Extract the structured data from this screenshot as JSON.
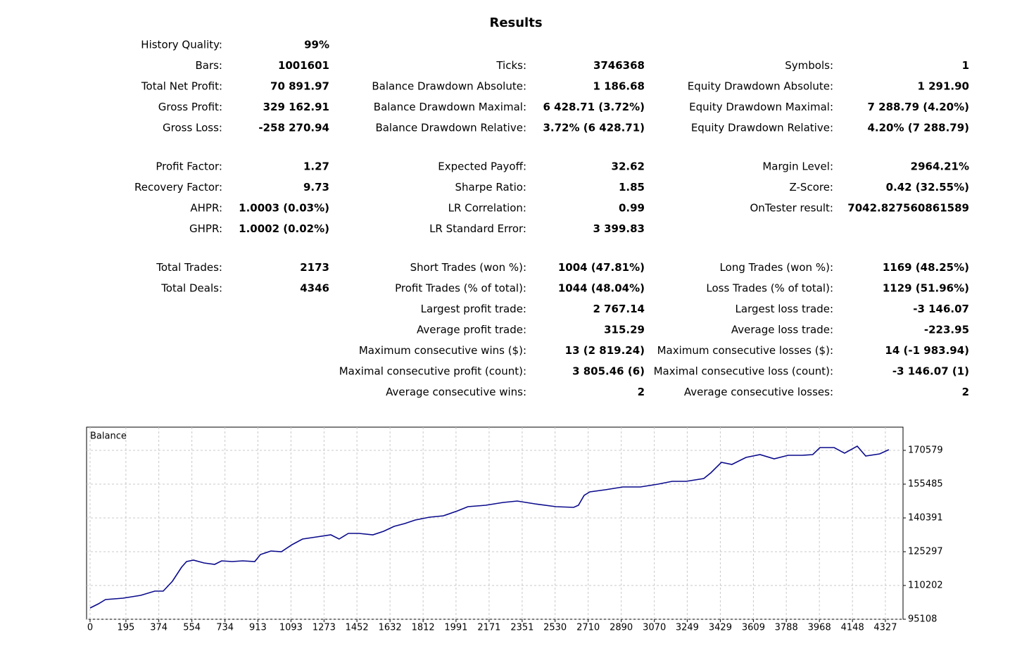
{
  "title": "Results",
  "groups": [
    {
      "rows": [
        [
          {
            "label": "History Quality:",
            "value": "99%"
          },
          null,
          null
        ],
        [
          {
            "label": "Bars:",
            "value": "1001601"
          },
          {
            "label": "Ticks:",
            "value": "3746368"
          },
          {
            "label": "Symbols:",
            "value": "1"
          }
        ],
        [
          {
            "label": "Total Net Profit:",
            "value": "70 891.97"
          },
          {
            "label": "Balance Drawdown Absolute:",
            "value": "1 186.68"
          },
          {
            "label": "Equity Drawdown Absolute:",
            "value": "1 291.90"
          }
        ],
        [
          {
            "label": "Gross Profit:",
            "value": "329 162.91"
          },
          {
            "label": "Balance Drawdown Maximal:",
            "value": "6 428.71 (3.72%)"
          },
          {
            "label": "Equity Drawdown Maximal:",
            "value": "7 288.79 (4.20%)"
          }
        ],
        [
          {
            "label": "Gross Loss:",
            "value": "-258 270.94"
          },
          {
            "label": "Balance Drawdown Relative:",
            "value": "3.72% (6 428.71)"
          },
          {
            "label": "Equity Drawdown Relative:",
            "value": "4.20% (7 288.79)"
          }
        ]
      ]
    },
    {
      "rows": [
        [
          {
            "label": "Profit Factor:",
            "value": "1.27"
          },
          {
            "label": "Expected Payoff:",
            "value": "32.62"
          },
          {
            "label": "Margin Level:",
            "value": "2964.21%"
          }
        ],
        [
          {
            "label": "Recovery Factor:",
            "value": "9.73"
          },
          {
            "label": "Sharpe Ratio:",
            "value": "1.85"
          },
          {
            "label": "Z-Score:",
            "value": "0.42 (32.55%)"
          }
        ],
        [
          {
            "label": "AHPR:",
            "value": "1.0003 (0.03%)"
          },
          {
            "label": "LR Correlation:",
            "value": "0.99"
          },
          {
            "label": "OnTester result:",
            "value": "7042.827560861589"
          }
        ],
        [
          {
            "label": "GHPR:",
            "value": "1.0002 (0.02%)"
          },
          {
            "label": "LR Standard Error:",
            "value": "3 399.83"
          },
          null
        ]
      ]
    },
    {
      "rows": [
        [
          {
            "label": "Total Trades:",
            "value": "2173"
          },
          {
            "label": "Short Trades (won %):",
            "value": "1004 (47.81%)"
          },
          {
            "label": "Long Trades (won %):",
            "value": "1169 (48.25%)"
          }
        ],
        [
          {
            "label": "Total Deals:",
            "value": "4346"
          },
          {
            "label": "Profit Trades (% of total):",
            "value": "1044 (48.04%)"
          },
          {
            "label": "Loss Trades (% of total):",
            "value": "1129 (51.96%)"
          }
        ],
        [
          null,
          {
            "label": "Largest profit trade:",
            "value": "2 767.14"
          },
          {
            "label": "Largest loss trade:",
            "value": "-3 146.07"
          }
        ],
        [
          null,
          {
            "label": "Average profit trade:",
            "value": "315.29"
          },
          {
            "label": "Average loss trade:",
            "value": "-223.95"
          }
        ],
        [
          null,
          {
            "label": "Maximum consecutive wins ($):",
            "value": "13 (2 819.24)"
          },
          {
            "label": "Maximum consecutive losses ($):",
            "value": "14 (-1 983.94)"
          }
        ],
        [
          null,
          {
            "label": "Maximal consecutive profit (count):",
            "value": "3 805.46 (6)"
          },
          {
            "label": "Maximal consecutive loss (count):",
            "value": "-3 146.07 (1)"
          }
        ],
        [
          null,
          {
            "label": "Average consecutive wins:",
            "value": "2"
          },
          {
            "label": "Average consecutive losses:",
            "value": "2"
          }
        ]
      ]
    }
  ],
  "chart_data": {
    "type": "line",
    "x": [
      0,
      46,
      84,
      180,
      276,
      352,
      398,
      448,
      498,
      525,
      563,
      620,
      678,
      716,
      773,
      831,
      896,
      927,
      984,
      1041,
      1099,
      1156,
      1233,
      1310,
      1355,
      1405,
      1463,
      1539,
      1597,
      1654,
      1712,
      1769,
      1846,
      1922,
      1999,
      2056,
      2152,
      2248,
      2324,
      2420,
      2535,
      2631,
      2657,
      2688,
      2719,
      2803,
      2899,
      2994,
      3090,
      3167,
      3243,
      3339,
      3377,
      3435,
      3492,
      3569,
      3645,
      3722,
      3798,
      3875,
      3932,
      3971,
      4048,
      4105,
      4174,
      4220,
      4296,
      4346
    ],
    "series": [
      {
        "name": "Balance",
        "color": "#0a0a8c",
        "values": [
          100139,
          102026,
          103913,
          104542,
          105800,
          107686,
          107686,
          112089,
          118378,
          120894,
          121523,
          120265,
          119636,
          121208,
          120894,
          121208,
          120894,
          124038,
          125610,
          125296,
          128441,
          130956,
          131900,
          132843,
          130956,
          133472,
          133472,
          132843,
          134415,
          136617,
          137875,
          139447,
          140705,
          141334,
          143535,
          145422,
          146051,
          147307,
          147937,
          146680,
          145422,
          145108,
          146051,
          150453,
          152025,
          152969,
          154227,
          154227,
          155485,
          156743,
          156743,
          158000,
          160516,
          165233,
          164290,
          167434,
          168692,
          166805,
          168378,
          168378,
          168692,
          171836,
          171836,
          169321,
          172465,
          168063,
          169006,
          170892
        ]
      }
    ],
    "xlim": [
      -19,
      4423
    ],
    "ylim": [
      95108,
      180956
    ],
    "xticks": [
      0,
      195,
      374,
      554,
      734,
      913,
      1093,
      1273,
      1452,
      1632,
      1812,
      1991,
      2171,
      2351,
      2530,
      2710,
      2890,
      3070,
      3249,
      3429,
      3609,
      3788,
      3968,
      4148,
      4327
    ],
    "yticks": [
      95108,
      110202,
      125297,
      140391,
      155485,
      170579
    ],
    "grid": true
  }
}
